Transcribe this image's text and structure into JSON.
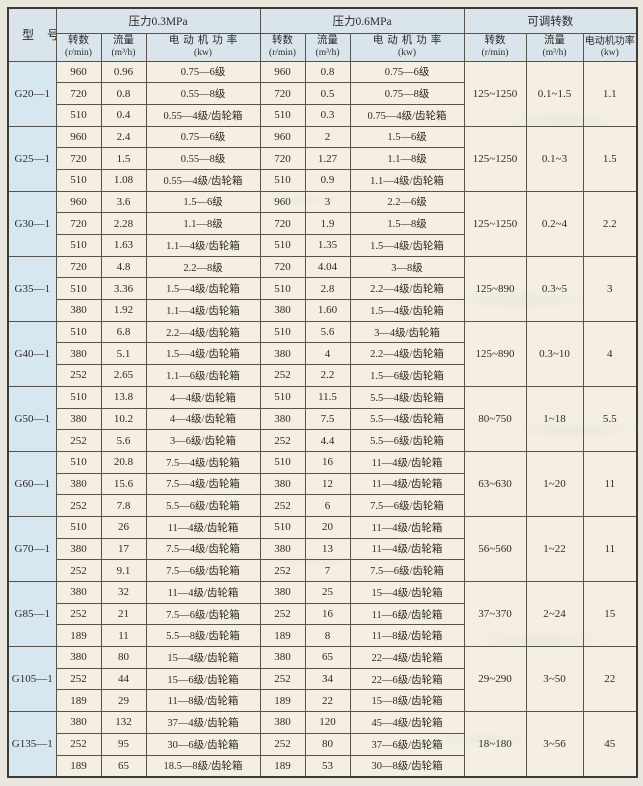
{
  "colors": {
    "header_blue": "#d9e5eb",
    "model_column_blue": "#d7e7f0",
    "cell_cream": "#f4efe2",
    "grid_line": "#58544c",
    "page_background": "#eae7df"
  },
  "table": {
    "header": {
      "model_col": "型号",
      "groups": [
        {
          "title": "压力0.3MPa"
        },
        {
          "title": "压力0.6MPa"
        },
        {
          "title": "可调转数"
        }
      ],
      "subheaders": [
        {
          "label": "转数",
          "unit": "(r/min)"
        },
        {
          "label": "流量",
          "unit": "(m³/h)"
        },
        {
          "label": "电动机功率",
          "unit": "(kw)"
        },
        {
          "label": "转数",
          "unit": "(r/min)"
        },
        {
          "label": "流量",
          "unit": "(m³/h)"
        },
        {
          "label": "电动机功率",
          "unit": "(kw)"
        },
        {
          "label": "转数",
          "unit": "(r/min)"
        },
        {
          "label": "流量",
          "unit": "(m³/h)"
        },
        {
          "label": "电动机功率",
          "unit": "(kw)"
        }
      ]
    },
    "models": [
      {
        "model": "G20—1",
        "p03": [
          {
            "speed": "960",
            "flow": "0.96",
            "power": "0.75—6级"
          },
          {
            "speed": "720",
            "flow": "0.8",
            "power": "0.55—8级"
          },
          {
            "speed": "510",
            "flow": "0.4",
            "power": "0.55—4级/齿轮箱"
          }
        ],
        "p06": [
          {
            "speed": "960",
            "flow": "0.8",
            "power": "0.75—6级"
          },
          {
            "speed": "720",
            "flow": "0.5",
            "power": "0.75—8级"
          },
          {
            "speed": "510",
            "flow": "0.3",
            "power": "0.75—4级/齿轮箱"
          }
        ],
        "adjustable": {
          "speed": "125~1250",
          "flow": "0.1~1.5",
          "power": "1.1"
        }
      },
      {
        "model": "G25—1",
        "p03": [
          {
            "speed": "960",
            "flow": "2.4",
            "power": "0.75—6级"
          },
          {
            "speed": "720",
            "flow": "1.5",
            "power": "0.55—8级"
          },
          {
            "speed": "510",
            "flow": "1.08",
            "power": "0.55—4级/齿轮箱"
          }
        ],
        "p06": [
          {
            "speed": "960",
            "flow": "2",
            "power": "1.5—6级"
          },
          {
            "speed": "720",
            "flow": "1.27",
            "power": "1.1—8级"
          },
          {
            "speed": "510",
            "flow": "0.9",
            "power": "1.1—4级/齿轮箱"
          }
        ],
        "adjustable": {
          "speed": "125~1250",
          "flow": "0.1~3",
          "power": "1.5"
        }
      },
      {
        "model": "G30—1",
        "p03": [
          {
            "speed": "960",
            "flow": "3.6",
            "power": "1.5—6级"
          },
          {
            "speed": "720",
            "flow": "2.28",
            "power": "1.1—8级"
          },
          {
            "speed": "510",
            "flow": "1.63",
            "power": "1.1—4级/齿轮箱"
          }
        ],
        "p06": [
          {
            "speed": "960",
            "flow": "3",
            "power": "2.2—6级"
          },
          {
            "speed": "720",
            "flow": "1.9",
            "power": "1.5—8级"
          },
          {
            "speed": "510",
            "flow": "1.35",
            "power": "1.5—4级/齿轮箱"
          }
        ],
        "adjustable": {
          "speed": "125~1250",
          "flow": "0.2~4",
          "power": "2.2"
        }
      },
      {
        "model": "G35—1",
        "p03": [
          {
            "speed": "720",
            "flow": "4.8",
            "power": "2.2—8级"
          },
          {
            "speed": "510",
            "flow": "3.36",
            "power": "1.5—4级/齿轮箱"
          },
          {
            "speed": "380",
            "flow": "1.92",
            "power": "1.1—4级/齿轮箱"
          }
        ],
        "p06": [
          {
            "speed": "720",
            "flow": "4.04",
            "power": "3—8级"
          },
          {
            "speed": "510",
            "flow": "2.8",
            "power": "2.2—4级/齿轮箱"
          },
          {
            "speed": "380",
            "flow": "1.60",
            "power": "1.5—4级/齿轮箱"
          }
        ],
        "adjustable": {
          "speed": "125~890",
          "flow": "0.3~5",
          "power": "3"
        }
      },
      {
        "model": "G40—1",
        "p03": [
          {
            "speed": "510",
            "flow": "6.8",
            "power": "2.2—4级/齿轮箱"
          },
          {
            "speed": "380",
            "flow": "5.1",
            "power": "1.5—4级/齿轮箱"
          },
          {
            "speed": "252",
            "flow": "2.65",
            "power": "1.1—6级/齿轮箱"
          }
        ],
        "p06": [
          {
            "speed": "510",
            "flow": "5.6",
            "power": "3—4级/齿轮箱"
          },
          {
            "speed": "380",
            "flow": "4",
            "power": "2.2—4级/齿轮箱"
          },
          {
            "speed": "252",
            "flow": "2.2",
            "power": "1.5—6级/齿轮箱"
          }
        ],
        "adjustable": {
          "speed": "125~890",
          "flow": "0.3~10",
          "power": "4"
        }
      },
      {
        "model": "G50—1",
        "p03": [
          {
            "speed": "510",
            "flow": "13.8",
            "power": "4—4级/齿轮箱"
          },
          {
            "speed": "380",
            "flow": "10.2",
            "power": "4—4级/齿轮箱"
          },
          {
            "speed": "252",
            "flow": "5.6",
            "power": "3—6级/齿轮箱"
          }
        ],
        "p06": [
          {
            "speed": "510",
            "flow": "11.5",
            "power": "5.5—4级/齿轮箱"
          },
          {
            "speed": "380",
            "flow": "7.5",
            "power": "5.5—4级/齿轮箱"
          },
          {
            "speed": "252",
            "flow": "4.4",
            "power": "5.5—6级/齿轮箱"
          }
        ],
        "adjustable": {
          "speed": "80~750",
          "flow": "1~18",
          "power": "5.5"
        }
      },
      {
        "model": "G60—1",
        "p03": [
          {
            "speed": "510",
            "flow": "20.8",
            "power": "7.5—4级/齿轮箱"
          },
          {
            "speed": "380",
            "flow": "15.6",
            "power": "7.5—4级/齿轮箱"
          },
          {
            "speed": "252",
            "flow": "7.8",
            "power": "5.5—6级/齿轮箱"
          }
        ],
        "p06": [
          {
            "speed": "510",
            "flow": "16",
            "power": "11—4级/齿轮箱"
          },
          {
            "speed": "380",
            "flow": "12",
            "power": "11—4级/齿轮箱"
          },
          {
            "speed": "252",
            "flow": "6",
            "power": "7.5—6级/齿轮箱"
          }
        ],
        "adjustable": {
          "speed": "63~630",
          "flow": "1~20",
          "power": "11"
        }
      },
      {
        "model": "G70—1",
        "p03": [
          {
            "speed": "510",
            "flow": "26",
            "power": "11—4级/齿轮箱"
          },
          {
            "speed": "380",
            "flow": "17",
            "power": "7.5—4级/齿轮箱"
          },
          {
            "speed": "252",
            "flow": "9.1",
            "power": "7.5—6级/齿轮箱"
          }
        ],
        "p06": [
          {
            "speed": "510",
            "flow": "20",
            "power": "11—4级/齿轮箱"
          },
          {
            "speed": "380",
            "flow": "13",
            "power": "11—4级/齿轮箱"
          },
          {
            "speed": "252",
            "flow": "7",
            "power": "7.5—6级/齿轮箱"
          }
        ],
        "adjustable": {
          "speed": "56~560",
          "flow": "1~22",
          "power": "11"
        }
      },
      {
        "model": "G85—1",
        "p03": [
          {
            "speed": "380",
            "flow": "32",
            "power": "11—4级/齿轮箱"
          },
          {
            "speed": "252",
            "flow": "21",
            "power": "7.5—6级/齿轮箱"
          },
          {
            "speed": "189",
            "flow": "11",
            "power": "5.5—8级/齿轮箱"
          }
        ],
        "p06": [
          {
            "speed": "380",
            "flow": "25",
            "power": "15—4级/齿轮箱"
          },
          {
            "speed": "252",
            "flow": "16",
            "power": "11—6级/齿轮箱"
          },
          {
            "speed": "189",
            "flow": "8",
            "power": "11—8级/齿轮箱"
          }
        ],
        "adjustable": {
          "speed": "37~370",
          "flow": "2~24",
          "power": "15"
        }
      },
      {
        "model": "G105—1",
        "p03": [
          {
            "speed": "380",
            "flow": "80",
            "power": "15—4级/齿轮箱"
          },
          {
            "speed": "252",
            "flow": "44",
            "power": "15—6级/齿轮箱"
          },
          {
            "speed": "189",
            "flow": "29",
            "power": "11—8级/齿轮箱"
          }
        ],
        "p06": [
          {
            "speed": "380",
            "flow": "65",
            "power": "22—4级/齿轮箱"
          },
          {
            "speed": "252",
            "flow": "34",
            "power": "22—6级/齿轮箱"
          },
          {
            "speed": "189",
            "flow": "22",
            "power": "15—8级/齿轮箱"
          }
        ],
        "adjustable": {
          "speed": "29~290",
          "flow": "3~50",
          "power": "22"
        }
      },
      {
        "model": "G135—1",
        "p03": [
          {
            "speed": "380",
            "flow": "132",
            "power": "37—4级/齿轮箱"
          },
          {
            "speed": "252",
            "flow": "95",
            "power": "30—6级/齿轮箱"
          },
          {
            "speed": "189",
            "flow": "65",
            "power": "18.5—8级/齿轮箱"
          }
        ],
        "p06": [
          {
            "speed": "380",
            "flow": "120",
            "power": "45—4级/齿轮箱"
          },
          {
            "speed": "252",
            "flow": "80",
            "power": "37—6级/齿轮箱"
          },
          {
            "speed": "189",
            "flow": "53",
            "power": "30—8级/齿轮箱"
          }
        ],
        "adjustable": {
          "speed": "18~180",
          "flow": "3~56",
          "power": "45"
        }
      }
    ]
  }
}
